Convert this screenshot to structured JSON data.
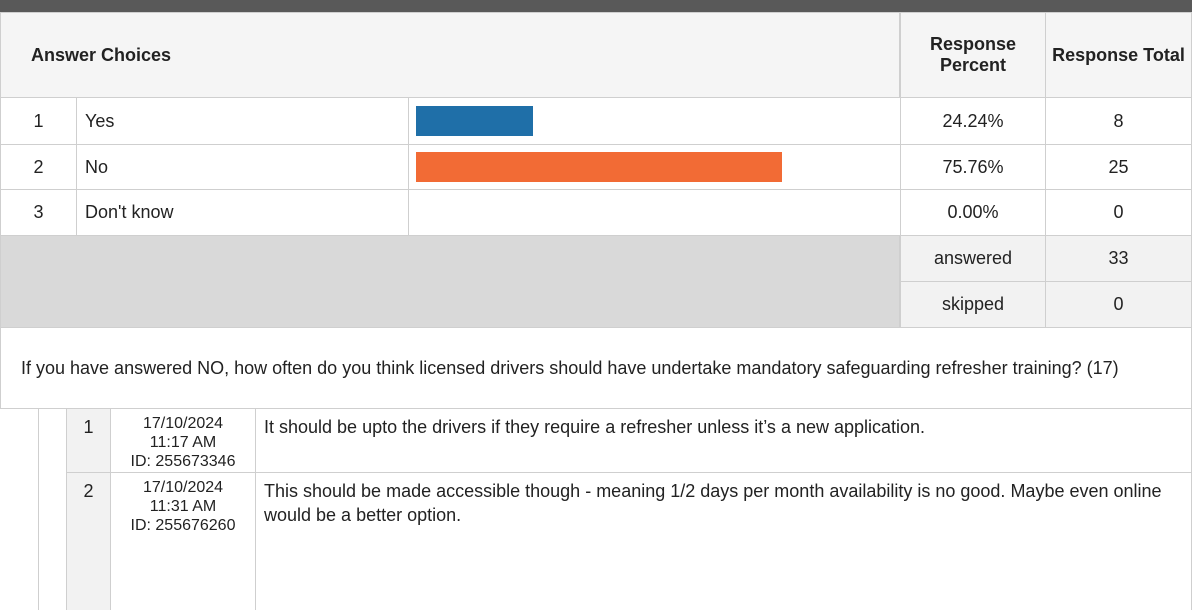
{
  "table": {
    "headers": [
      "Answer Choices",
      "Response Percent",
      "Response Total"
    ],
    "rows": [
      {
        "index": "1",
        "choice": "Yes",
        "percent": 24.24,
        "percent_label": "24.24%",
        "total": 8,
        "color": "#1f6fa8"
      },
      {
        "index": "2",
        "choice": "No",
        "percent": 75.76,
        "percent_label": "75.76%",
        "total": 25,
        "color": "#f26b35"
      },
      {
        "index": "3",
        "choice": "Don't know",
        "percent": 0,
        "percent_label": "0.00%",
        "total": 0,
        "color": "#999999"
      }
    ],
    "summary": [
      {
        "label": "answered",
        "value": 33
      },
      {
        "label": "skipped",
        "value": 0
      }
    ]
  },
  "question": "If you have answered NO, how often do you think licensed drivers should have undertake mandatory safeguarding refresher training? (17)",
  "responses": [
    {
      "index": "1",
      "date": "17/10/2024",
      "time": "11:17 AM",
      "id": "ID: 255673346",
      "text": "It should be upto the drivers if they require a refresher unless it’s a new application."
    },
    {
      "index": "2",
      "date": "17/10/2024",
      "time": "11:31 AM",
      "id": "ID: 255676260",
      "text": "This should be made accessible though - meaning 1/2 days per month availability is no good. Maybe even online would be a better option."
    }
  ]
}
